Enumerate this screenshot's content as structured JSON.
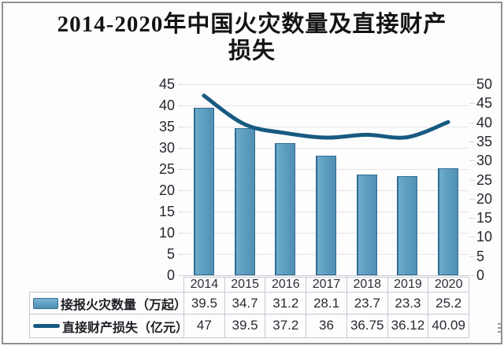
{
  "title": {
    "full": "2014-2020年中国火灾数量及直接财产损失",
    "line1": "2014-2020年中国火灾数量及直接财产",
    "line2": "损失"
  },
  "colors": {
    "bar_fill": "#5b9dc0",
    "bar_border": "#2f6d92",
    "line": "#175a80",
    "grid": "#e4e4ea",
    "table_border": "#c3cbd6",
    "axis_text": "#26262e",
    "frame_border": "#8f8f8f",
    "background": "#fdfdfe"
  },
  "chart_data": {
    "type": "combo",
    "title": "2014-2020年中国火灾数量及直接财产损失",
    "categories": [
      "2014",
      "2015",
      "2016",
      "2017",
      "2018",
      "2019",
      "2020"
    ],
    "series": [
      {
        "name": "接报火灾数量（万起）",
        "type": "bar",
        "axis": "left",
        "values": [
          39.5,
          34.7,
          31.2,
          28.1,
          23.7,
          23.3,
          25.2
        ]
      },
      {
        "name": "直接财产损失（亿元）",
        "type": "line",
        "axis": "right",
        "values": [
          47,
          39.5,
          37.2,
          36,
          36.75,
          36.12,
          40.09
        ]
      }
    ],
    "left_axis": {
      "min": 0,
      "max": 45,
      "step": 5,
      "ticks": [
        0,
        5,
        10,
        15,
        20,
        25,
        30,
        35,
        40,
        45
      ]
    },
    "right_axis": {
      "min": 0,
      "max": 50,
      "step": 5,
      "ticks": [
        0,
        5,
        10,
        15,
        20,
        25,
        30,
        35,
        40,
        45,
        50
      ]
    },
    "grid": true,
    "legend_position": "bottom-table",
    "data_table_shown": true
  }
}
